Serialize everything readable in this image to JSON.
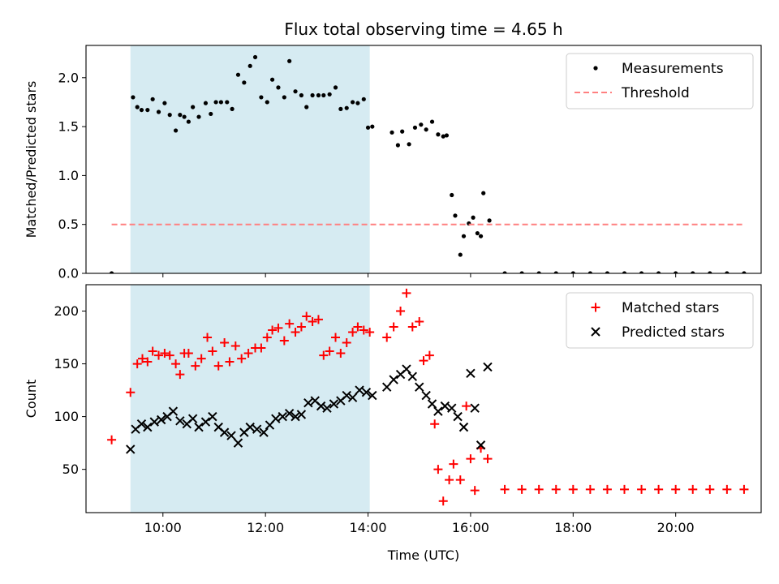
{
  "chart_data": [
    {
      "type": "scatter",
      "title": "Flux total observing time = 4.65 h",
      "xlabel": "",
      "ylabel": "Matched/Predicted stars",
      "xlim": [
        "08:30",
        "21:40"
      ],
      "ylim": [
        0,
        2.33
      ],
      "yticks": [
        0.0,
        0.5,
        1.0,
        1.5,
        2.0
      ],
      "ytick_labels": [
        "0.0",
        "0.5",
        "1.0",
        "1.5",
        "2.0"
      ],
      "xticks": [
        "10:00",
        "12:00",
        "14:00",
        "16:00",
        "18:00",
        "20:00"
      ],
      "shaded_region": {
        "x": [
          "09:22",
          "14:02"
        ],
        "color": "#add8e6"
      },
      "legend_position": "top-right",
      "legend": [
        "Measurements",
        "Threshold"
      ],
      "series": [
        {
          "name": "Measurements",
          "marker": "dot",
          "color": "#000000",
          "x": [
            "09:00",
            "09:25",
            "09:30",
            "09:35",
            "09:42",
            "09:48",
            "09:55",
            "10:02",
            "10:08",
            "10:15",
            "10:20",
            "10:25",
            "10:30",
            "10:35",
            "10:42",
            "10:50",
            "10:56",
            "11:02",
            "11:08",
            "11:15",
            "11:21",
            "11:28",
            "11:35",
            "11:42",
            "11:48",
            "11:55",
            "12:02",
            "12:08",
            "12:15",
            "12:22",
            "12:28",
            "12:35",
            "12:42",
            "12:48",
            "12:55",
            "13:02",
            "13:08",
            "13:15",
            "13:22",
            "13:28",
            "13:35",
            "13:42",
            "13:48",
            "13:55",
            "14:00",
            "14:05",
            "14:28",
            "14:35",
            "14:40",
            "14:48",
            "14:55",
            "15:02",
            "15:08",
            "15:15",
            "15:22",
            "15:28",
            "15:32",
            "15:38",
            "15:42",
            "15:48",
            "15:52",
            "15:58",
            "16:03",
            "16:08",
            "16:12",
            "16:15",
            "16:22",
            "16:40",
            "17:00",
            "17:20",
            "17:40",
            "18:00",
            "18:20",
            "18:40",
            "19:00",
            "19:20",
            "19:40",
            "20:00",
            "20:20",
            "20:40",
            "21:00",
            "21:20"
          ],
          "y": [
            0.0,
            1.8,
            1.7,
            1.67,
            1.67,
            1.78,
            1.65,
            1.74,
            1.62,
            1.46,
            1.62,
            1.6,
            1.55,
            1.7,
            1.6,
            1.74,
            1.63,
            1.75,
            1.75,
            1.75,
            1.68,
            2.03,
            1.95,
            2.12,
            2.21,
            1.8,
            1.75,
            1.98,
            1.9,
            1.8,
            2.17,
            1.86,
            1.82,
            1.7,
            1.82,
            1.82,
            1.82,
            1.83,
            1.9,
            1.68,
            1.69,
            1.75,
            1.74,
            1.78,
            1.49,
            1.5,
            1.44,
            1.31,
            1.45,
            1.32,
            1.49,
            1.52,
            1.47,
            1.55,
            1.42,
            1.4,
            1.41,
            0.8,
            0.59,
            0.19,
            0.38,
            0.51,
            0.57,
            0.41,
            0.38,
            0.82,
            0.54,
            0.0,
            0.0,
            0.0,
            0.0,
            0.0,
            0.0,
            0.0,
            0.0,
            0.0,
            0.0,
            0.0,
            0.0,
            0.0,
            0.0,
            0.0
          ]
        },
        {
          "name": "Threshold",
          "style": "dashed",
          "color": "#ff8080",
          "x": [
            "09:00",
            "21:20"
          ],
          "y": [
            0.5,
            0.5
          ]
        }
      ]
    },
    {
      "type": "scatter",
      "title": "",
      "xlabel": "Time (UTC)",
      "ylabel": "Count",
      "xlim": [
        "08:30",
        "21:40"
      ],
      "ylim": [
        9,
        225
      ],
      "yticks": [
        50,
        100,
        150,
        200
      ],
      "ytick_labels": [
        "50",
        "100",
        "150",
        "200"
      ],
      "xticks": [
        "10:00",
        "12:00",
        "14:00",
        "16:00",
        "18:00",
        "20:00"
      ],
      "xtick_labels": [
        "10:00",
        "12:00",
        "14:00",
        "16:00",
        "18:00",
        "20:00"
      ],
      "shaded_region": {
        "x": [
          "09:22",
          "14:02"
        ],
        "color": "#add8e6"
      },
      "legend_position": "top-right",
      "legend": [
        "Matched stars",
        "Predicted stars"
      ],
      "series": [
        {
          "name": "Matched stars",
          "marker": "plus",
          "color": "#ff0000",
          "x": [
            "09:00",
            "09:22",
            "09:30",
            "09:36",
            "09:42",
            "09:48",
            "09:55",
            "10:02",
            "10:08",
            "10:15",
            "10:20",
            "10:25",
            "10:30",
            "10:38",
            "10:45",
            "10:52",
            "10:58",
            "11:05",
            "11:12",
            "11:18",
            "11:25",
            "11:32",
            "11:40",
            "11:48",
            "11:55",
            "12:02",
            "12:08",
            "12:15",
            "12:22",
            "12:28",
            "12:35",
            "12:42",
            "12:48",
            "12:55",
            "13:02",
            "13:08",
            "13:15",
            "13:22",
            "13:28",
            "13:35",
            "13:42",
            "13:48",
            "13:55",
            "14:02",
            "14:22",
            "14:30",
            "14:38",
            "14:45",
            "14:52",
            "15:00",
            "15:05",
            "15:12",
            "15:18",
            "15:22",
            "15:28",
            "15:35",
            "15:40",
            "15:48",
            "15:55",
            "16:00",
            "16:05",
            "16:12",
            "16:20",
            "16:40",
            "17:00",
            "17:20",
            "17:40",
            "18:00",
            "18:20",
            "18:40",
            "19:00",
            "19:20",
            "19:40",
            "20:00",
            "20:20",
            "20:40",
            "21:00",
            "21:20"
          ],
          "y": [
            78,
            123,
            150,
            155,
            152,
            162,
            158,
            160,
            158,
            150,
            140,
            160,
            160,
            148,
            155,
            175,
            162,
            148,
            170,
            152,
            167,
            155,
            160,
            165,
            165,
            175,
            182,
            184,
            172,
            188,
            180,
            185,
            195,
            190,
            192,
            158,
            162,
            175,
            160,
            170,
            180,
            185,
            182,
            180,
            175,
            185,
            200,
            217,
            185,
            190,
            153,
            158,
            93,
            50,
            20,
            40,
            55,
            40,
            110,
            60,
            30,
            70,
            60,
            31,
            31,
            31,
            31,
            31,
            31,
            31,
            31,
            31,
            31,
            31,
            31,
            31,
            31,
            31
          ]
        },
        {
          "name": "Predicted stars",
          "marker": "x",
          "color": "#000000",
          "x": [
            "09:22",
            "09:28",
            "09:35",
            "09:42",
            "09:50",
            "09:58",
            "10:05",
            "10:12",
            "10:20",
            "10:28",
            "10:35",
            "10:42",
            "10:50",
            "10:58",
            "11:05",
            "11:12",
            "11:20",
            "11:28",
            "11:35",
            "11:42",
            "11:50",
            "11:58",
            "12:05",
            "12:12",
            "12:20",
            "12:28",
            "12:35",
            "12:42",
            "12:50",
            "12:58",
            "13:05",
            "13:12",
            "13:20",
            "13:28",
            "13:35",
            "13:42",
            "13:50",
            "13:58",
            "14:05",
            "14:22",
            "14:30",
            "14:38",
            "14:45",
            "14:52",
            "15:00",
            "15:08",
            "15:15",
            "15:22",
            "15:30",
            "15:38",
            "15:45",
            "15:52",
            "16:00",
            "16:05",
            "16:12",
            "16:20"
          ],
          "y": [
            69,
            88,
            93,
            90,
            95,
            97,
            100,
            105,
            96,
            93,
            98,
            90,
            95,
            100,
            90,
            85,
            82,
            75,
            85,
            90,
            88,
            85,
            92,
            98,
            100,
            103,
            100,
            102,
            113,
            115,
            110,
            108,
            112,
            115,
            120,
            118,
            125,
            123,
            120,
            128,
            135,
            140,
            145,
            138,
            128,
            120,
            112,
            105,
            110,
            108,
            100,
            90,
            141,
            108,
            73,
            147
          ]
        }
      ]
    }
  ]
}
